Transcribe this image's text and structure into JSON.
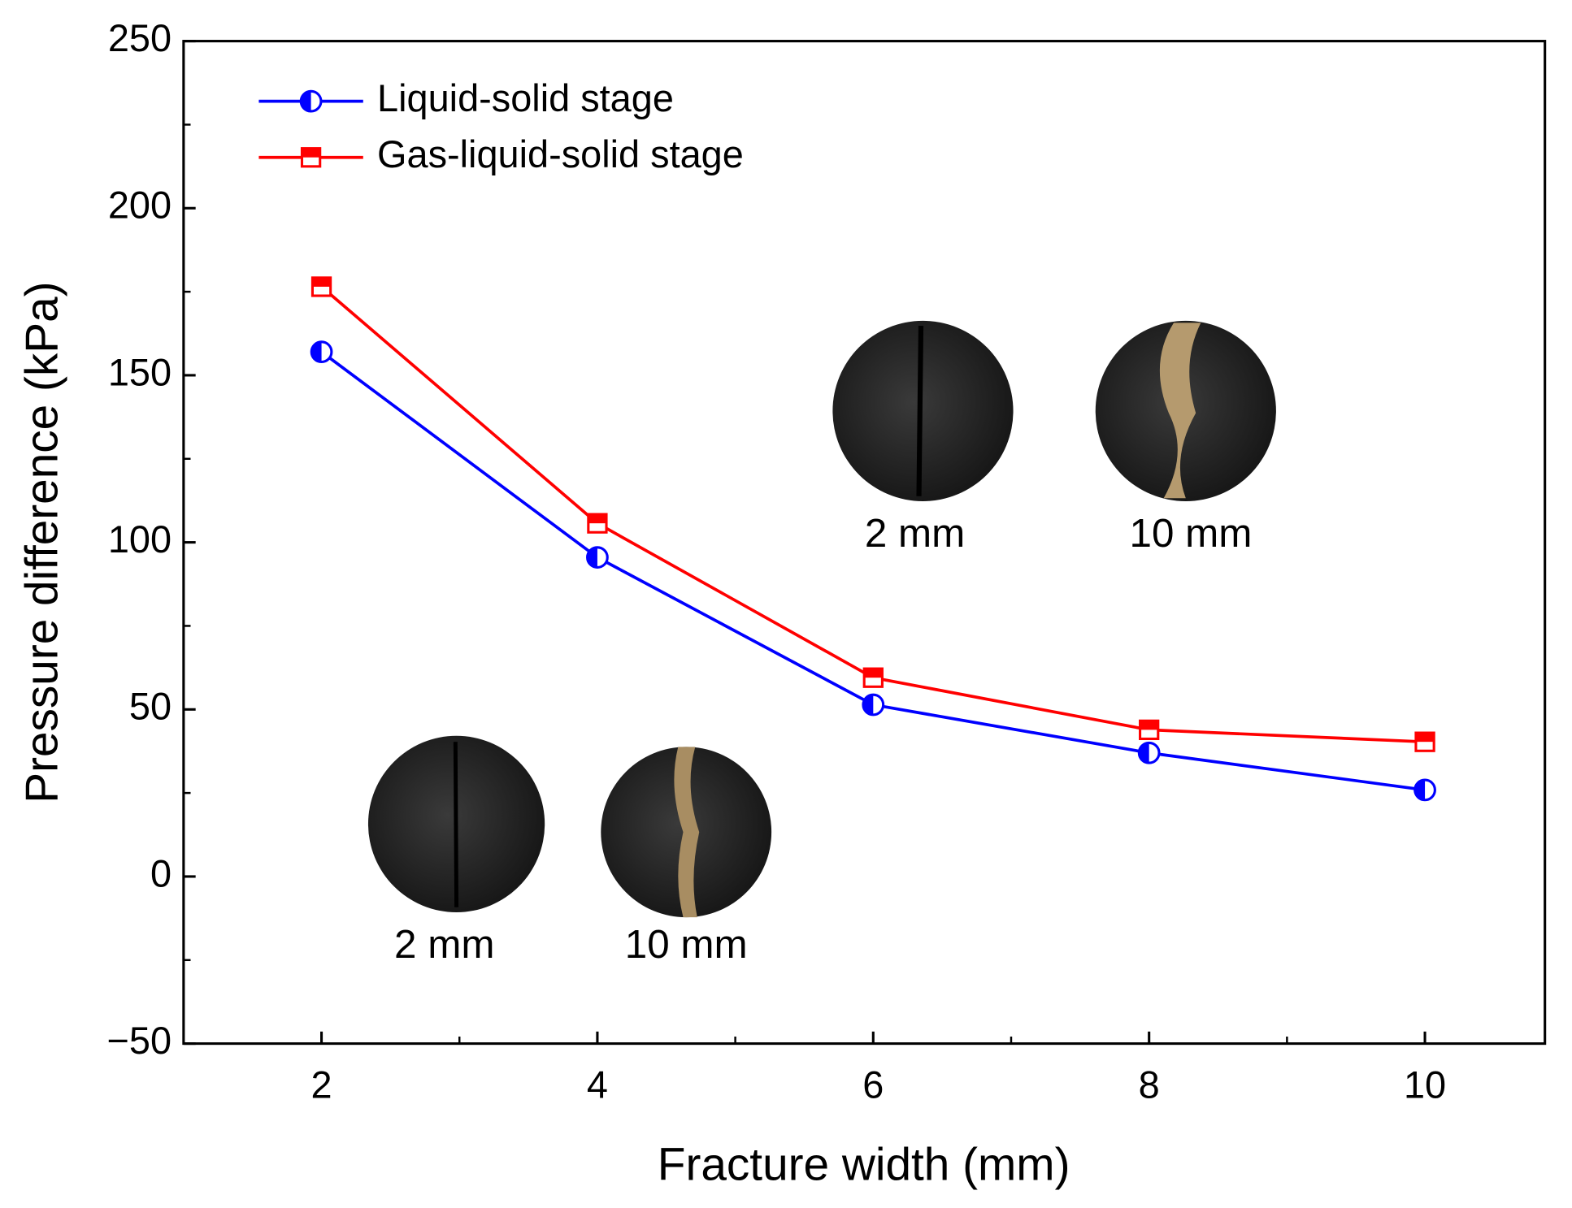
{
  "chart_data": {
    "type": "line",
    "xlabel": "Fracture width (mm)",
    "ylabel": "Pressure difference (kPa)",
    "x": [
      2,
      4,
      6,
      8,
      10
    ],
    "series": [
      {
        "name": "Liquid-solid stage",
        "color": "#0000ff",
        "marker": "half-circle",
        "values": [
          157,
          95.5,
          51.4,
          37,
          25.9
        ]
      },
      {
        "name": "Gas-liquid-solid stage",
        "color": "#ff0000",
        "marker": "half-square",
        "values": [
          176.5,
          105.7,
          59.5,
          43.9,
          40.3
        ]
      }
    ],
    "xlim": [
      1,
      10.87
    ],
    "ylim": [
      -50,
      250
    ],
    "xticks": [
      2,
      4,
      6,
      8,
      10
    ],
    "yticks": [
      {
        "value": -50,
        "label": "−50"
      },
      0,
      50,
      100,
      150,
      200,
      250
    ],
    "xminorticks": [
      3,
      5,
      7,
      9
    ],
    "yminorticks": [
      -25,
      25,
      75,
      125,
      175,
      225
    ],
    "legend": "upper left",
    "annotations": [
      "2 mm",
      "10 mm",
      "2 mm",
      "10 mm"
    ]
  }
}
